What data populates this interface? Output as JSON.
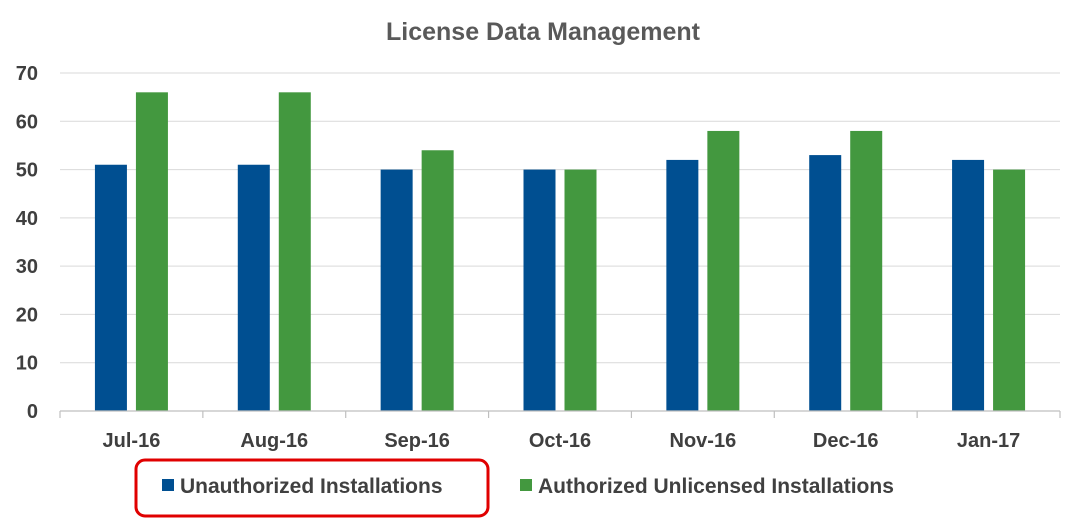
{
  "chart_data": {
    "type": "bar",
    "title": "License Data Management",
    "xlabel": "",
    "ylabel": "",
    "categories": [
      "Jul-16",
      "Aug-16",
      "Sep-16",
      "Oct-16",
      "Nov-16",
      "Dec-16",
      "Jan-17"
    ],
    "series": [
      {
        "name": "Unauthorized Installations",
        "color": "#004f91",
        "values": [
          51,
          51,
          50,
          50,
          52,
          53,
          52
        ]
      },
      {
        "name": "Authorized Unlicensed Installations",
        "color": "#43983f",
        "values": [
          66,
          66,
          54,
          50,
          58,
          58,
          50
        ]
      }
    ],
    "ylim": [
      0,
      70
    ],
    "yticks": [
      "0",
      "10",
      "20",
      "30",
      "40",
      "50",
      "60",
      "70"
    ],
    "grid": true,
    "legend_position": "bottom",
    "highlight": {
      "target": "Unauthorized Installations",
      "color": "#e00000"
    }
  }
}
